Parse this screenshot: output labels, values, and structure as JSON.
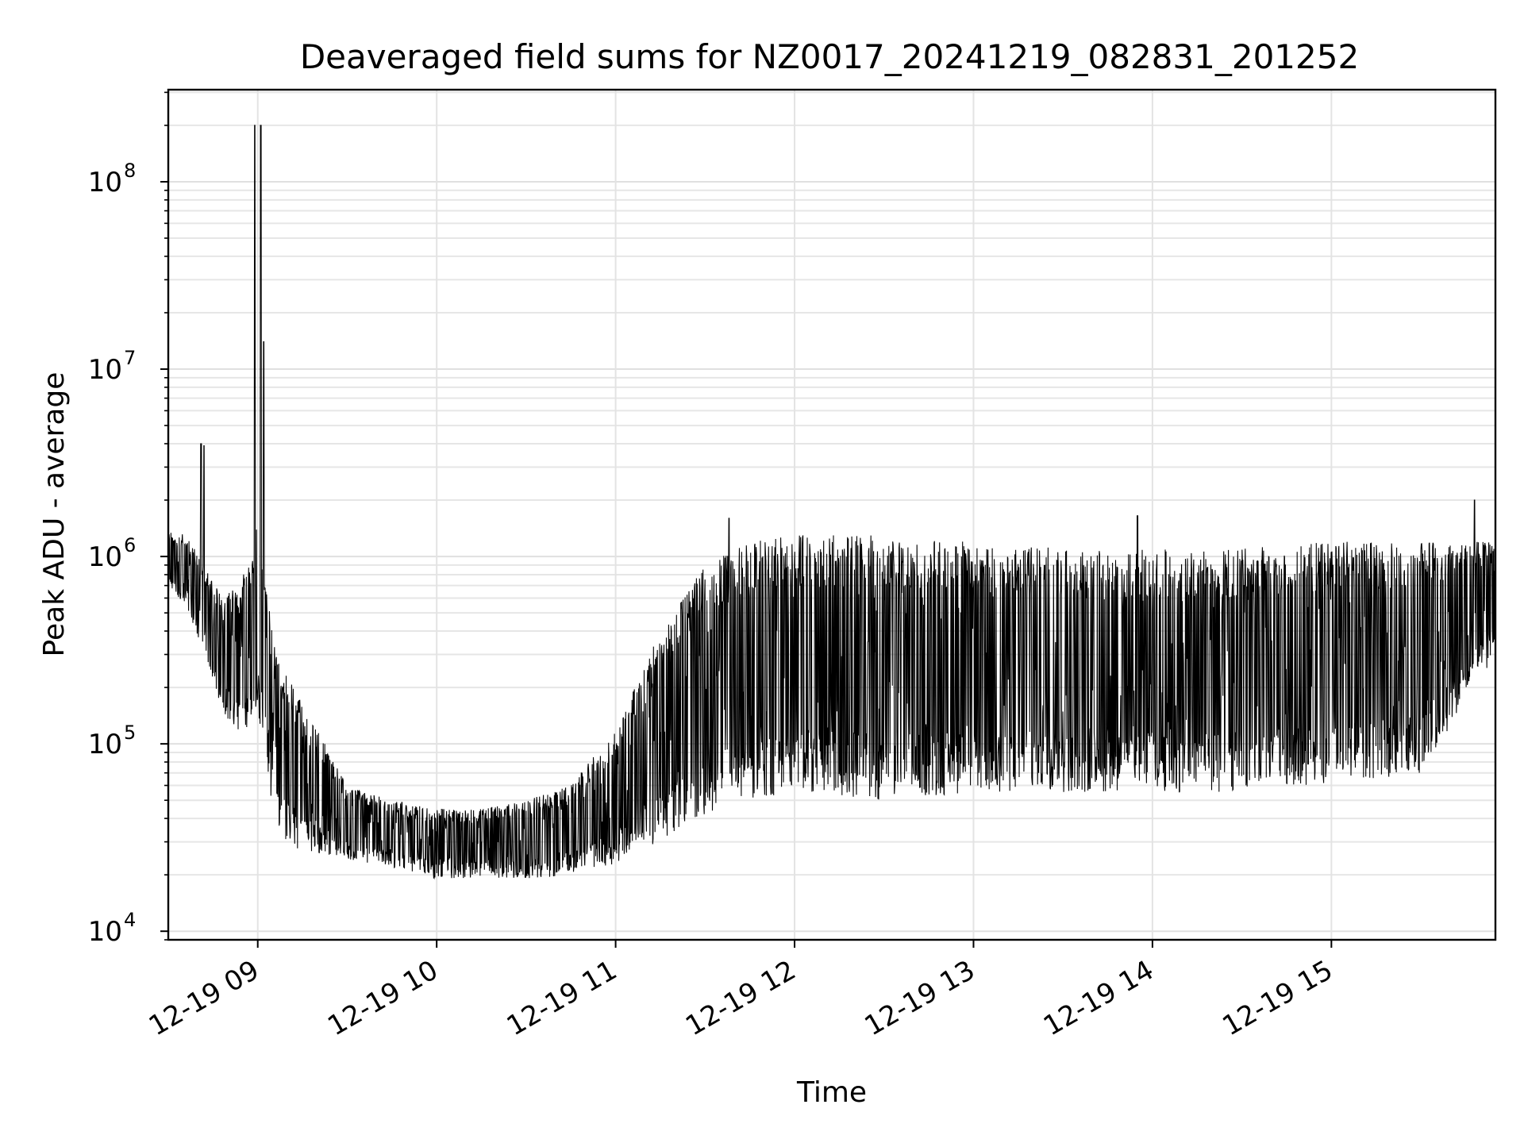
{
  "chart_data": {
    "type": "line",
    "title": "Deaveraged field sums for NZ0017_20241219_082831_201252",
    "xlabel": "Time",
    "ylabel": "Peak ADU - average",
    "x_axis": {
      "kind": "datetime",
      "range": [
        "2024-12-19T08:30",
        "2024-12-19T15:55"
      ],
      "ticks": [
        {
          "t": "2024-12-19T09:00",
          "label": "12-19 09"
        },
        {
          "t": "2024-12-19T10:00",
          "label": "12-19 10"
        },
        {
          "t": "2024-12-19T11:00",
          "label": "12-19 11"
        },
        {
          "t": "2024-12-19T12:00",
          "label": "12-19 12"
        },
        {
          "t": "2024-12-19T13:00",
          "label": "12-19 13"
        },
        {
          "t": "2024-12-19T14:00",
          "label": "12-19 14"
        },
        {
          "t": "2024-12-19T15:00",
          "label": "12-19 15"
        }
      ]
    },
    "y_axis": {
      "scale": "log",
      "range": [
        9000,
        310000000
      ],
      "ticks": [
        {
          "value": 10000,
          "base": "10",
          "exp": "4"
        },
        {
          "value": 100000,
          "base": "10",
          "exp": "5"
        },
        {
          "value": 1000000,
          "base": "10",
          "exp": "6"
        },
        {
          "value": 10000000,
          "base": "10",
          "exp": "7"
        },
        {
          "value": 100000000,
          "base": "10",
          "exp": "8"
        }
      ]
    },
    "grid": true,
    "series": [
      {
        "color": "#000000",
        "envelope": [
          {
            "t": "2024-12-19T08:30",
            "low": 650000,
            "high": 1400000
          },
          {
            "t": "2024-12-19T08:36",
            "low": 550000,
            "high": 1300000
          },
          {
            "t": "2024-12-19T08:42",
            "low": 300000,
            "high": 900000
          },
          {
            "t": "2024-12-19T08:48",
            "low": 150000,
            "high": 600000
          },
          {
            "t": "2024-12-19T08:54",
            "low": 100000,
            "high": 700000
          },
          {
            "t": "2024-12-19T09:00",
            "low": 150000,
            "high": 1500000
          },
          {
            "t": "2024-12-19T09:06",
            "low": 35000,
            "high": 300000
          },
          {
            "t": "2024-12-19T09:12",
            "low": 28000,
            "high": 200000
          },
          {
            "t": "2024-12-19T09:20",
            "low": 25000,
            "high": 120000
          },
          {
            "t": "2024-12-19T09:30",
            "low": 24000,
            "high": 60000
          },
          {
            "t": "2024-12-19T09:45",
            "low": 22000,
            "high": 50000
          },
          {
            "t": "2024-12-19T10:00",
            "low": 19000,
            "high": 45000
          },
          {
            "t": "2024-12-19T10:15",
            "low": 19000,
            "high": 45000
          },
          {
            "t": "2024-12-19T10:30",
            "low": 19000,
            "high": 50000
          },
          {
            "t": "2024-12-19T10:45",
            "low": 20000,
            "high": 60000
          },
          {
            "t": "2024-12-19T11:00",
            "low": 23000,
            "high": 120000
          },
          {
            "t": "2024-12-19T11:15",
            "low": 30000,
            "high": 400000
          },
          {
            "t": "2024-12-19T11:30",
            "low": 40000,
            "high": 900000
          },
          {
            "t": "2024-12-19T11:45",
            "low": 50000,
            "high": 1200000
          },
          {
            "t": "2024-12-19T12:00",
            "low": 55000,
            "high": 1300000
          },
          {
            "t": "2024-12-19T12:30",
            "low": 50000,
            "high": 1300000
          },
          {
            "t": "2024-12-19T13:00",
            "low": 55000,
            "high": 1200000
          },
          {
            "t": "2024-12-19T13:30",
            "low": 55000,
            "high": 1100000
          },
          {
            "t": "2024-12-19T14:00",
            "low": 55000,
            "high": 1100000
          },
          {
            "t": "2024-12-19T14:30",
            "low": 55000,
            "high": 1100000
          },
          {
            "t": "2024-12-19T15:00",
            "low": 60000,
            "high": 1200000
          },
          {
            "t": "2024-12-19T15:30",
            "low": 70000,
            "high": 1200000
          },
          {
            "t": "2024-12-19T15:55",
            "low": 300000,
            "high": 1200000
          }
        ],
        "spikes": [
          {
            "t": "2024-12-19T08:41",
            "value": 4000000
          },
          {
            "t": "2024-12-19T08:42",
            "value": 3900000
          },
          {
            "t": "2024-12-19T08:59",
            "value": 200000000
          },
          {
            "t": "2024-12-19T09:01",
            "value": 200000000
          },
          {
            "t": "2024-12-19T09:02",
            "value": 14000000
          },
          {
            "t": "2024-12-19T11:38",
            "value": 1600000
          },
          {
            "t": "2024-12-19T13:55",
            "value": 1650000
          },
          {
            "t": "2024-12-19T15:48",
            "value": 2000000
          }
        ]
      }
    ]
  }
}
